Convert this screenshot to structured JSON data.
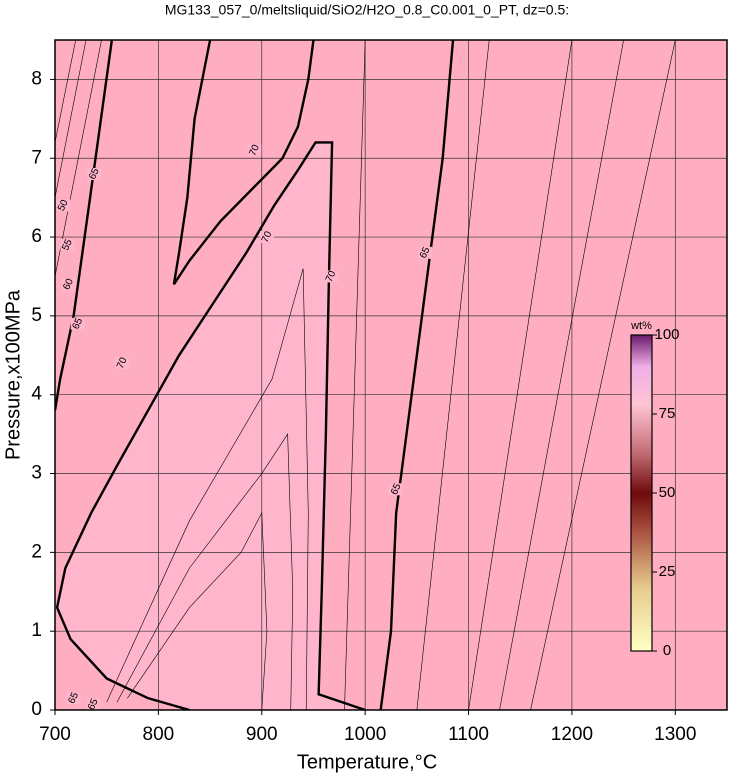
{
  "chart_data": {
    "type": "contour",
    "title": "MG133_057_0/meltsliquid/SiO2/H2O_0.8_C0.001_0_PT, dz=0.5:",
    "x_label": "Temperature,°C",
    "y_label": "Pressure,x100MPa",
    "xlim": [
      700,
      1350
    ],
    "ylim": [
      0,
      8.5
    ],
    "xticks": [
      700,
      800,
      900,
      1000,
      1100,
      1200,
      1300
    ],
    "yticks": [
      0,
      1,
      2,
      3,
      4,
      5,
      6,
      7,
      8
    ],
    "grid": true,
    "color": "#ffadc0",
    "inner_color": "#ffb5cb",
    "contours": [
      {
        "level": 70,
        "thick": true,
        "x": [
          830,
          790,
          750,
          715,
          702,
          710,
          735,
          760,
          790,
          820,
          855,
          885,
          912,
          935,
          952,
          968,
          965,
          962,
          958,
          955,
          1000
        ],
        "y": [
          0,
          0.15,
          0.4,
          0.9,
          1.3,
          1.8,
          2.5,
          3.1,
          3.8,
          4.5,
          5.2,
          5.8,
          6.4,
          6.85,
          7.2,
          7.2,
          5.5,
          3.5,
          1.5,
          0.2,
          0
        ]
      },
      {
        "level": 70,
        "thick": true,
        "x": [
          850,
          835,
          828,
          820,
          815,
          830,
          860,
          890,
          920,
          935,
          945,
          950
        ],
        "y": [
          8.5,
          7.5,
          6.5,
          5.8,
          5.4,
          5.7,
          6.2,
          6.6,
          7.0,
          7.4,
          8.0,
          8.5
        ]
      },
      {
        "level": 65,
        "thick": true,
        "x": [
          1015,
          1025,
          1030,
          1040,
          1050,
          1060,
          1075,
          1085
        ],
        "y": [
          0,
          1,
          2.5,
          3.5,
          4.5,
          5.5,
          7,
          8.5
        ]
      },
      {
        "level": 65,
        "thick": true,
        "x": [
          755,
          735,
          718,
          705,
          700
        ],
        "y": [
          8.5,
          6.6,
          5.0,
          4.2,
          3.8
        ]
      },
      {
        "thick": false,
        "x": [
          770,
          830,
          880,
          900,
          905,
          900
        ],
        "y": [
          0.15,
          1.3,
          2.0,
          2.5,
          1.0,
          0
        ]
      },
      {
        "thick": false,
        "x": [
          760,
          830,
          900,
          925,
          930,
          928
        ],
        "y": [
          0.1,
          1.8,
          3.0,
          3.5,
          1.5,
          0
        ]
      },
      {
        "thick": false,
        "x": [
          750,
          830,
          910,
          940,
          945,
          943
        ],
        "y": [
          0.1,
          2.4,
          4.2,
          5.6,
          2.5,
          0
        ]
      },
      {
        "thick": false,
        "x": [
          980,
          1000
        ],
        "y": [
          0,
          8.5
        ]
      },
      {
        "thick": false,
        "x": [
          1050,
          1120
        ],
        "y": [
          0,
          8.5
        ]
      },
      {
        "thick": false,
        "x": [
          1100,
          1200
        ],
        "y": [
          0,
          8.5
        ]
      },
      {
        "thick": false,
        "x": [
          1130,
          1250
        ],
        "y": [
          0,
          8.5
        ]
      },
      {
        "thick": false,
        "x": [
          1160,
          1300
        ],
        "y": [
          0,
          8.5
        ]
      },
      {
        "thick": false,
        "x": [
          700,
          745
        ],
        "y": [
          5.5,
          8.5
        ]
      },
      {
        "thick": false,
        "x": [
          700,
          730
        ],
        "y": [
          6.5,
          8.5
        ]
      },
      {
        "thick": false,
        "x": [
          700,
          720
        ],
        "y": [
          7.2,
          8.5
        ]
      }
    ],
    "contour_labels": [
      {
        "value": 70,
        "x": 905,
        "y": 6.0
      },
      {
        "value": 70,
        "x": 893,
        "y": 7.1
      },
      {
        "value": 70,
        "x": 765,
        "y": 4.4
      },
      {
        "value": 70,
        "x": 967,
        "y": 5.5
      },
      {
        "value": 65,
        "x": 1058,
        "y": 5.8
      },
      {
        "value": 65,
        "x": 1030,
        "y": 2.8
      },
      {
        "value": 65,
        "x": 722,
        "y": 4.9
      },
      {
        "value": 65,
        "x": 738,
        "y": 6.8
      },
      {
        "value": 60,
        "x": 713,
        "y": 5.4
      },
      {
        "value": 55,
        "x": 712,
        "y": 5.9
      },
      {
        "value": 50,
        "x": 708,
        "y": 6.4
      },
      {
        "value": 65,
        "x": 718,
        "y": 0.15
      },
      {
        "value": 65,
        "x": 737,
        "y": 0.07
      }
    ],
    "colorbar": {
      "label": "wt%",
      "lim": [
        0,
        100
      ],
      "ticks": [
        0,
        25,
        50,
        75,
        100
      ]
    }
  }
}
